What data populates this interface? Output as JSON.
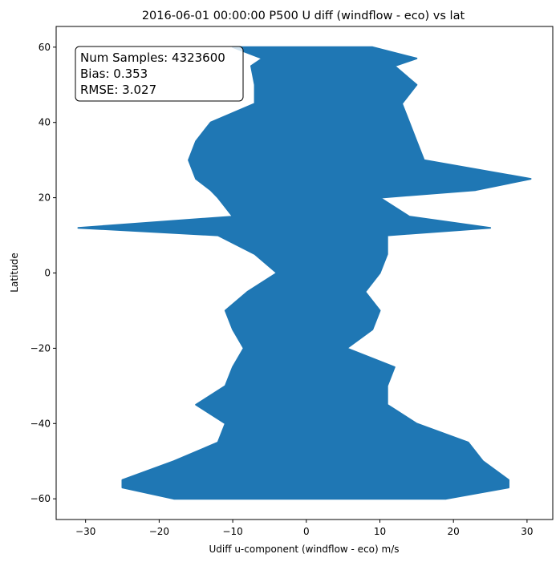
{
  "chart_data": {
    "type": "scatter",
    "title": "2016-06-01 00:00:00 P500 U diff (windflow - eco) vs lat",
    "xlabel": "Udiff u-component (windflow - eco) m/s",
    "ylabel": "Latitude",
    "xlim": [
      -34,
      33.5
    ],
    "ylim": [
      -65.5,
      65.5
    ],
    "x_ticks": [
      -30,
      -20,
      -10,
      0,
      10,
      20,
      30
    ],
    "y_ticks": [
      -60,
      -40,
      -20,
      0,
      20,
      40,
      60
    ],
    "x_tick_labels": [
      "−30",
      "−20",
      "−10",
      "0",
      "10",
      "20",
      "30"
    ],
    "y_tick_labels": [
      "−60",
      "−40",
      "−20",
      "0",
      "20",
      "40",
      "60"
    ],
    "grid": false,
    "marker_color": "#1f77b4",
    "stats_box": {
      "lines": [
        "Num Samples: 4323600",
        "Bias: 0.353",
        "RMSE: 3.027"
      ],
      "placement": "top-left"
    },
    "envelope": {
      "description_lat": [
        60,
        57,
        55,
        50,
        45,
        40,
        35,
        30,
        25,
        22,
        20,
        15,
        12,
        10,
        5,
        0,
        -5,
        -10,
        -15,
        -20,
        -25,
        -30,
        -35,
        -40,
        -45,
        -50,
        -55,
        -57,
        -60
      ],
      "min_u": [
        -10,
        -6,
        -7.5,
        -7,
        -7,
        -13,
        -15,
        -16,
        -15,
        -13,
        -12,
        -10,
        -31,
        -12,
        -7,
        -4,
        -8,
        -11,
        -10,
        -8.5,
        -10,
        -11,
        -15,
        -11,
        -12,
        -18,
        -25,
        -25,
        -18
      ],
      "max_u": [
        9,
        15,
        12,
        15,
        13,
        14,
        15,
        16,
        30.5,
        23,
        10,
        14,
        25,
        11,
        11,
        10,
        8,
        10,
        9,
        5.5,
        12,
        11,
        11,
        15,
        22,
        24,
        27.5,
        27.5,
        19
      ]
    }
  }
}
